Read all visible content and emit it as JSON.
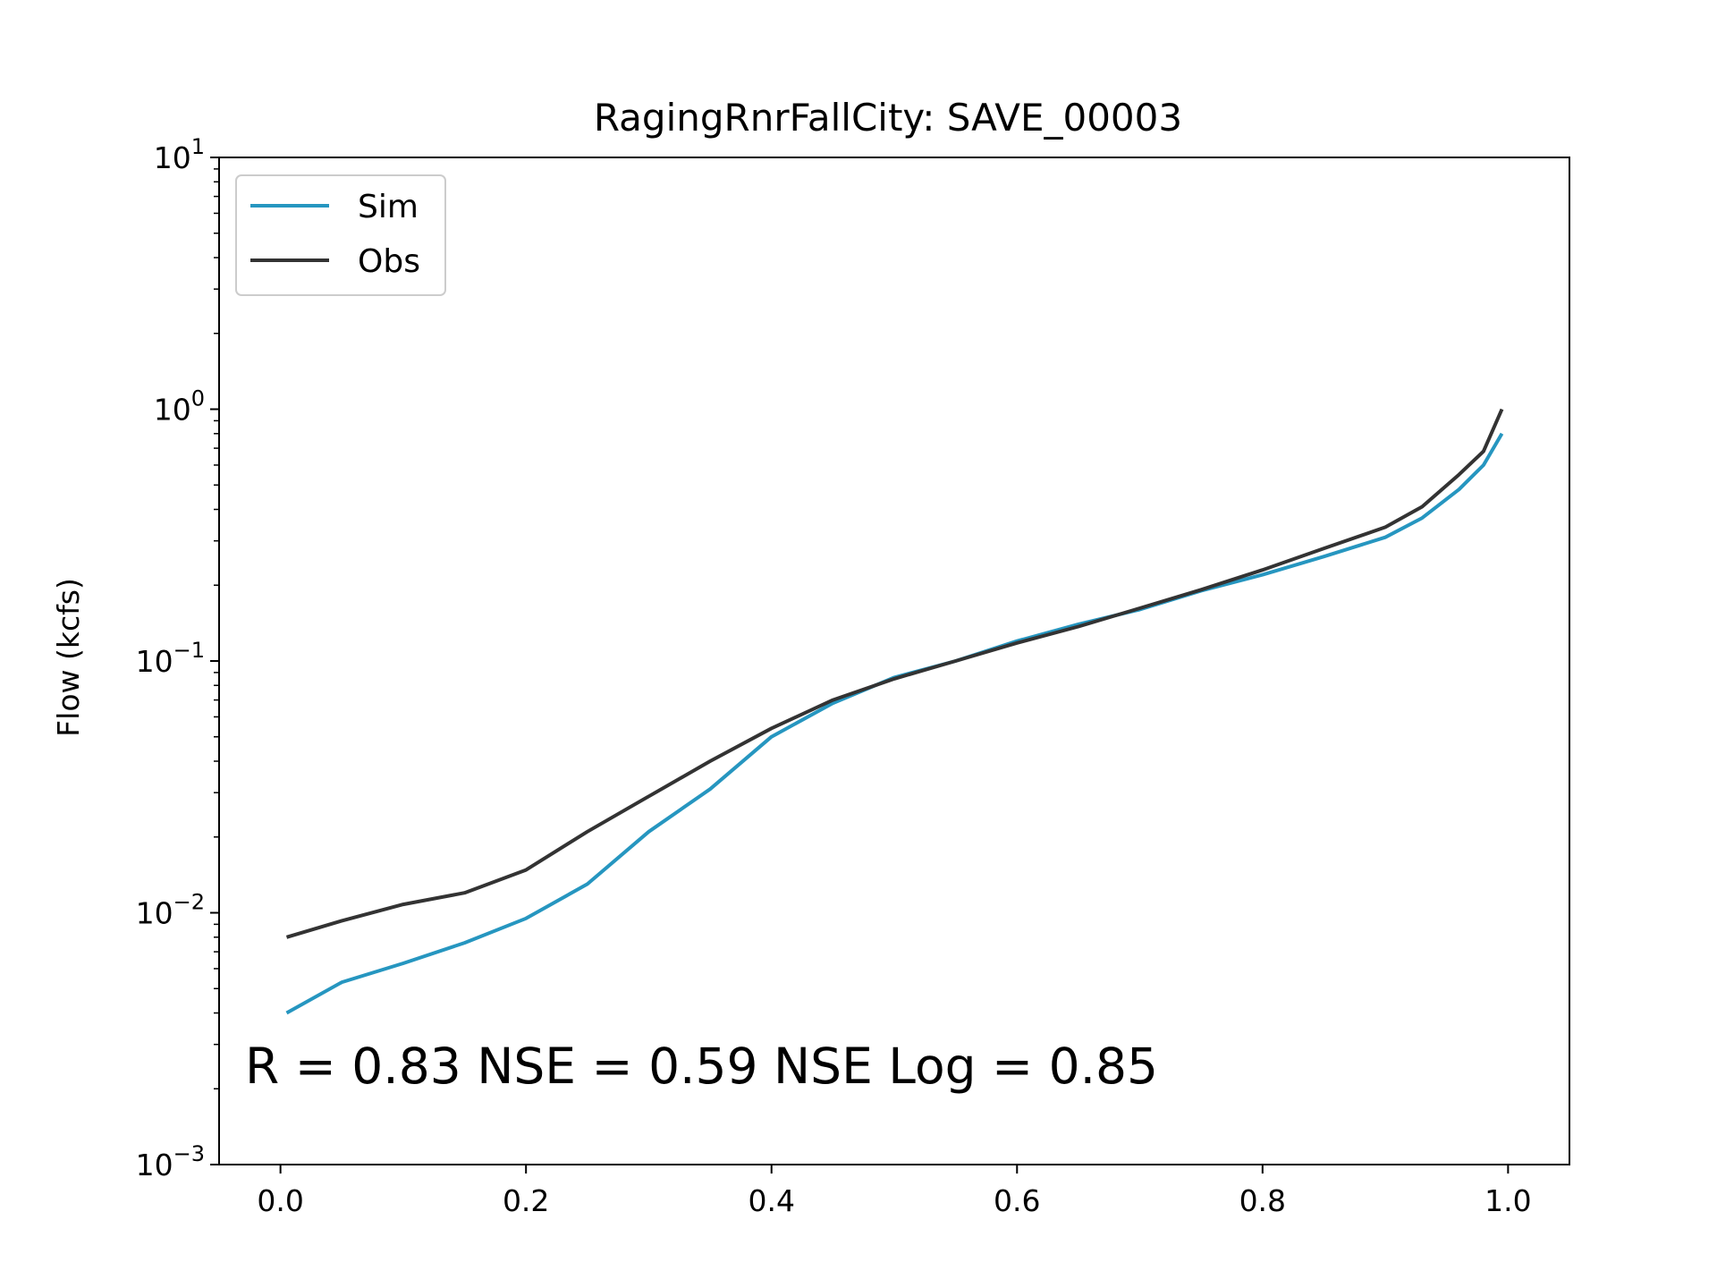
{
  "chart_data": {
    "type": "line",
    "title": "RagingRnrFallCity: SAVE_00003",
    "xlabel": "",
    "ylabel": "Flow (kcfs)",
    "yscale": "log",
    "xlim": [
      -0.05,
      1.05
    ],
    "ylim": [
      0.001,
      10
    ],
    "x_ticks": [
      "0.0",
      "0.2",
      "0.4",
      "0.6",
      "0.8",
      "1.0"
    ],
    "y_ticks": [
      {
        "base": "10",
        "exp": "1"
      },
      {
        "base": "10",
        "exp": "0"
      },
      {
        "base": "10",
        "exp": "−1"
      },
      {
        "base": "10",
        "exp": "−2"
      },
      {
        "base": "10",
        "exp": "−3"
      }
    ],
    "legend_position": "top-left",
    "grid": false,
    "annotation": "R = 0.83  NSE = 0.59  NSE Log = 0.85",
    "x": [
      0.005,
      0.05,
      0.1,
      0.15,
      0.2,
      0.25,
      0.3,
      0.35,
      0.4,
      0.45,
      0.5,
      0.55,
      0.6,
      0.65,
      0.7,
      0.75,
      0.8,
      0.85,
      0.9,
      0.93,
      0.96,
      0.98,
      0.995
    ],
    "series": [
      {
        "name": "Sim",
        "color": "#2696c0",
        "values": [
          0.004,
          0.0053,
          0.0063,
          0.0076,
          0.0095,
          0.013,
          0.021,
          0.031,
          0.05,
          0.068,
          0.086,
          0.1,
          0.12,
          0.14,
          0.16,
          0.19,
          0.22,
          0.26,
          0.31,
          0.37,
          0.48,
          0.6,
          0.8
        ]
      },
      {
        "name": "Obs",
        "color": "#333333",
        "values": [
          0.008,
          0.0093,
          0.0108,
          0.012,
          0.0148,
          0.021,
          0.029,
          0.04,
          0.054,
          0.07,
          0.085,
          0.1,
          0.118,
          0.137,
          0.162,
          0.192,
          0.23,
          0.28,
          0.34,
          0.41,
          0.55,
          0.68,
          1.0
        ]
      }
    ]
  }
}
